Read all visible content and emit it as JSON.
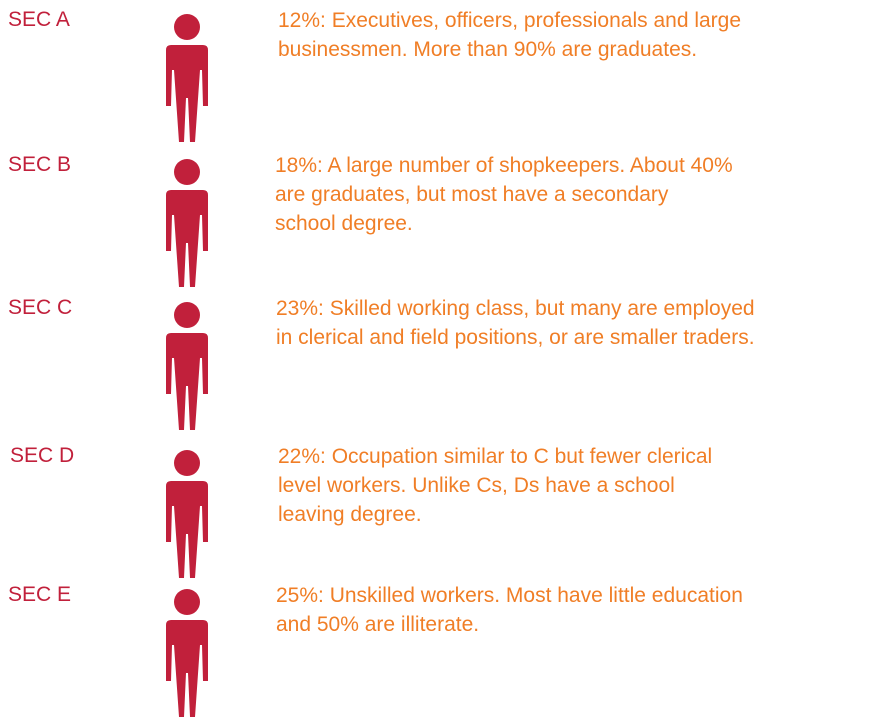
{
  "rows": [
    {
      "label": "SEC A",
      "lines": [
        "12%: Executives, officers, professionals and large",
        "businessmen. More than 90% are graduates."
      ]
    },
    {
      "label": "SEC B",
      "lines": [
        "18%: A large number of shopkeepers. About 40%",
        "are graduates, but most have a secondary",
        "school degree."
      ]
    },
    {
      "label": "SEC C",
      "lines": [
        "23%: Skilled working class, but many are employed",
        "in clerical and field positions, or are smaller traders."
      ]
    },
    {
      "label": "SEC D",
      "lines": [
        "22%: Occupation similar to C but fewer clerical",
        "level workers. Unlike Cs, Ds have a school",
        "leaving degree."
      ]
    },
    {
      "label": "SEC E",
      "lines": [
        "25%: Unskilled workers. Most have little education",
        "and 50% are illiterate."
      ]
    }
  ]
}
